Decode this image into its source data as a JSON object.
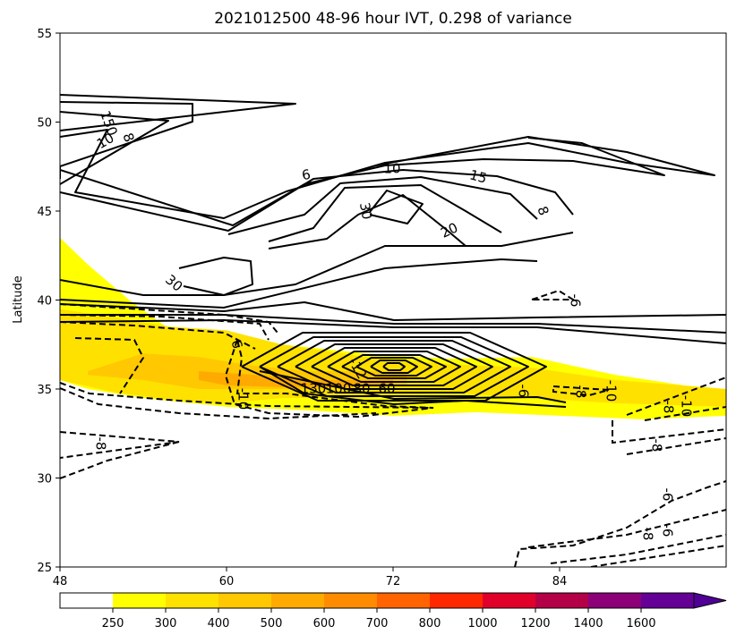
{
  "chart_data": {
    "type": "contour",
    "title": "2021012500 48-96 hour IVT, 0.298 of variance",
    "xlabel": "",
    "ylabel": "Latitude",
    "xlim": [
      48,
      96
    ],
    "ylim": [
      25,
      55
    ],
    "x_ticks": [
      48,
      60,
      72,
      84
    ],
    "y_ticks": [
      25,
      30,
      35,
      40,
      45,
      50,
      55
    ],
    "grid": false,
    "colorbar": {
      "orientation": "horizontal",
      "extend": "max",
      "levels": [
        250,
        300,
        400,
        500,
        600,
        700,
        800,
        1000,
        1200,
        1400,
        1600
      ],
      "colors": [
        "#ffffff",
        "#ffff00",
        "#ffe100",
        "#ffc800",
        "#ffaa00",
        "#ff8c00",
        "#ff6400",
        "#ff2800",
        "#e0002a",
        "#b40046",
        "#8c0078",
        "#640096",
        "#500096"
      ]
    },
    "filled_regions": [
      {
        "level": "250-300",
        "color": "#ffff00",
        "polygon": [
          [
            48,
            43.5
          ],
          [
            50,
            42
          ],
          [
            53,
            40
          ],
          [
            56,
            38.3
          ],
          [
            60,
            38
          ],
          [
            64,
            37.5
          ],
          [
            70,
            37
          ],
          [
            76,
            36.7
          ],
          [
            82,
            36.8
          ],
          [
            88,
            35.8
          ],
          [
            93,
            35.2
          ],
          [
            96,
            35
          ],
          [
            96,
            33.5
          ],
          [
            90,
            33.3
          ],
          [
            84,
            33.5
          ],
          [
            78,
            33.7
          ],
          [
            72,
            33.5
          ],
          [
            66,
            33.8
          ],
          [
            60,
            34
          ],
          [
            54,
            34.5
          ],
          [
            50,
            35
          ],
          [
            48,
            35.5
          ]
        ]
      },
      {
        "level": "300-400",
        "color": "#ffe100",
        "polygon": [
          [
            48,
            39.5
          ],
          [
            52,
            39
          ],
          [
            56,
            38.5
          ],
          [
            60,
            38.3
          ],
          [
            64,
            37.5
          ],
          [
            70,
            36.8
          ],
          [
            76,
            36.4
          ],
          [
            82,
            36.2
          ],
          [
            88,
            35.5
          ],
          [
            96,
            35
          ],
          [
            96,
            34
          ],
          [
            88,
            34.2
          ],
          [
            82,
            34.5
          ],
          [
            76,
            34.8
          ],
          [
            70,
            34.5
          ],
          [
            64,
            34.5
          ],
          [
            60,
            34.2
          ],
          [
            56,
            34.4
          ],
          [
            52,
            34.8
          ],
          [
            48,
            35.5
          ]
        ]
      },
      {
        "level": "400-500",
        "color": "#ffc800",
        "polygon": [
          [
            50,
            36
          ],
          [
            54,
            37
          ],
          [
            58,
            36.8
          ],
          [
            62,
            36.3
          ],
          [
            66,
            36
          ],
          [
            70,
            36
          ],
          [
            73,
            36
          ],
          [
            73,
            35.2
          ],
          [
            70,
            35.1
          ],
          [
            66,
            35
          ],
          [
            62,
            35
          ],
          [
            58,
            35
          ],
          [
            54,
            35.5
          ],
          [
            50,
            35.8
          ]
        ]
      },
      {
        "level": "500-600",
        "color": "#ffaa00",
        "polygon": [
          [
            58,
            36
          ],
          [
            62,
            35.8
          ],
          [
            66,
            35.5
          ],
          [
            70,
            35.5
          ],
          [
            72,
            35.6
          ],
          [
            72,
            35.2
          ],
          [
            68,
            35.1
          ],
          [
            64,
            35.1
          ],
          [
            60,
            35.2
          ],
          [
            58,
            35.5
          ]
        ]
      }
    ],
    "contours": {
      "solid_levels": [
        6,
        8,
        10,
        15,
        20,
        30,
        60,
        80,
        100,
        130,
        150
      ],
      "dashed_levels": [
        -6,
        -8,
        -10,
        -12
      ],
      "labels": [
        "150",
        "10",
        "8",
        "6",
        "10",
        "15",
        "30",
        "20",
        "8",
        "30",
        "6",
        "-6",
        "-8",
        "-6",
        "-8",
        "-10",
        "-6",
        "-8",
        "-10",
        "130",
        "100",
        "80",
        "60",
        "-12",
        "-8",
        "-10",
        "-8",
        "-6"
      ]
    }
  }
}
